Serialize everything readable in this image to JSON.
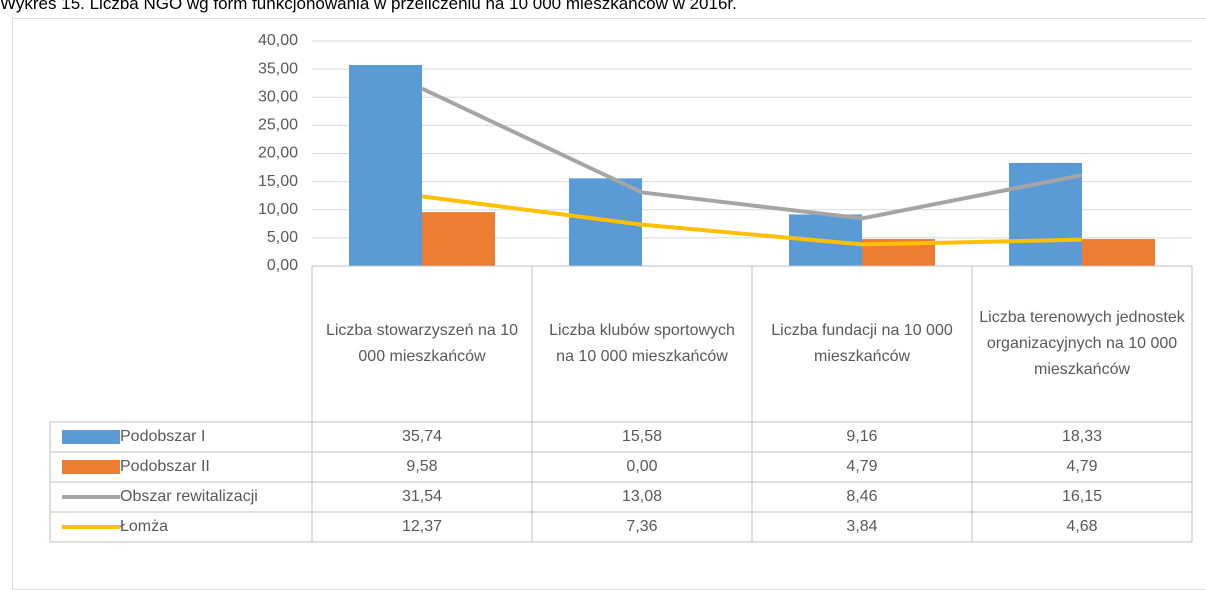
{
  "chart_data": {
    "type": "bar",
    "title": "Wykres 15. Liczba NGO wg form funkcjonowania w przeliczeniu na 10 000 mieszkańców w 2016r.",
    "categories": [
      "Liczba stowarzyszeń na 10 000 mieszkańców",
      "Liczba klubów sportowych na 10 000 mieszkańców",
      "Liczba fundacji na 10 000 mieszkańców",
      "Liczba terenowych jednostek organizacyjnych na 10 000 mieszkańców"
    ],
    "series": [
      {
        "name": "Podobszar I",
        "type": "bar",
        "color": "#5b9bd5",
        "values": [
          35.74,
          15.58,
          9.16,
          18.33
        ],
        "value_labels": [
          "35,74",
          "15,58",
          "9,16",
          "18,33"
        ]
      },
      {
        "name": "Podobszar II",
        "type": "bar",
        "color": "#ed7d31",
        "values": [
          9.58,
          0,
          4.79,
          4.79
        ],
        "value_labels": [
          "9,58",
          "0,00",
          "4,79",
          "4,79"
        ]
      },
      {
        "name": "Obszar rewitalizacji",
        "type": "line",
        "color": "#a5a5a5",
        "values": [
          31.54,
          13.08,
          8.46,
          16.15
        ],
        "value_labels": [
          "31,54",
          "13,08",
          "8,46",
          "16,15"
        ]
      },
      {
        "name": "Łomża",
        "type": "line",
        "color": "#ffc000",
        "values": [
          12.37,
          7.36,
          3.84,
          4.68
        ],
        "value_labels": [
          "12,37",
          "7,36",
          "3,84",
          "4,68"
        ]
      }
    ],
    "ylim": [
      0,
      40
    ],
    "yticks": [
      {
        "value": 0,
        "label": "0,00"
      },
      {
        "value": 5,
        "label": "5,00"
      },
      {
        "value": 10,
        "label": "10,00"
      },
      {
        "value": 15,
        "label": "15,00"
      },
      {
        "value": 20,
        "label": "20,00"
      },
      {
        "value": 25,
        "label": "25,00"
      },
      {
        "value": 30,
        "label": "30,00"
      },
      {
        "value": 35,
        "label": "35,00"
      },
      {
        "value": 40,
        "label": "40,00"
      }
    ],
    "grid": true
  }
}
